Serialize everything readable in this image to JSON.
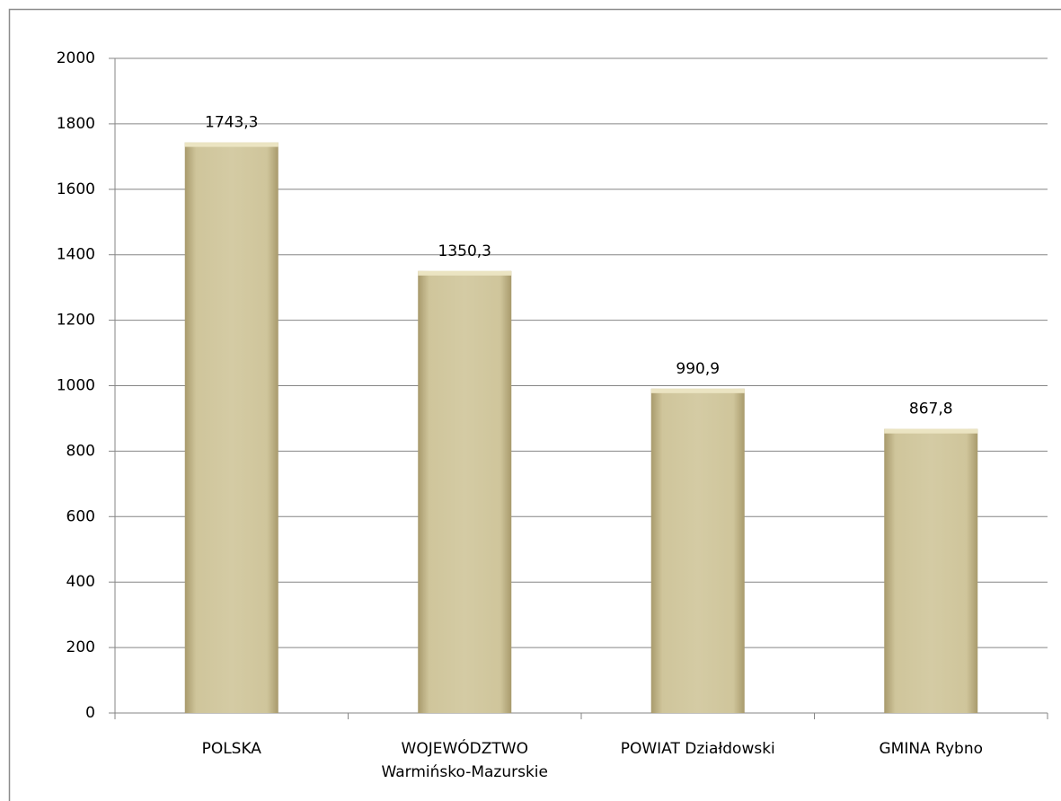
{
  "chart_data": {
    "type": "bar",
    "categories": [
      "POLSKA",
      "WOJEWÓDZTWO\nWarmińsko-Mazurskie",
      "POWIAT Działdowski",
      "GMINA Rybno"
    ],
    "values": [
      1743.3,
      1350.3,
      990.9,
      867.8
    ],
    "value_labels": [
      "1743,3",
      "1350,3",
      "990,9",
      "867,8"
    ],
    "color": "#d2c9a0",
    "ylim": [
      0,
      2000
    ],
    "yticks": [
      0,
      200,
      400,
      600,
      800,
      1000,
      1200,
      1400,
      1600,
      1800,
      2000
    ],
    "grid": true
  }
}
